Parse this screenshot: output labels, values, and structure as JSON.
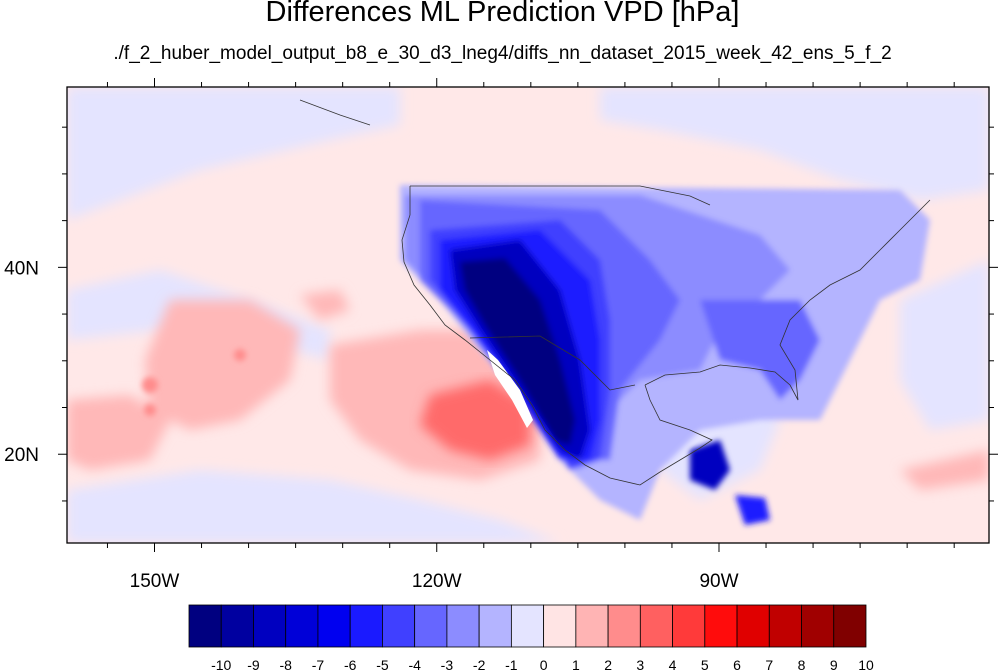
{
  "title": "Differences ML Prediction VPD [hPa]",
  "subtitle": "./f_2_huber_model_output_b8_e_30_d3_lneg4/diffs_nn_dataset_2015_week_42_ens_5_f_2",
  "map": {
    "lon_range": [
      -159.3,
      -61.3
    ],
    "lat_range": [
      10.5,
      59.3
    ],
    "x_ticks": [
      {
        "value": -150,
        "label": "150W"
      },
      {
        "value": -120,
        "label": "120W"
      },
      {
        "value": -90,
        "label": "90W"
      }
    ],
    "y_ticks": [
      {
        "value": 40,
        "label": "40N"
      },
      {
        "value": 20,
        "label": "20N"
      }
    ]
  },
  "colorbar": {
    "levels": [
      "-10",
      "-9",
      "-8",
      "-7",
      "-6",
      "-5",
      "-4",
      "-3",
      "-2",
      "-1",
      "0",
      "1",
      "2",
      "3",
      "4",
      "5",
      "6",
      "7",
      "8",
      "9",
      "10"
    ],
    "colors": [
      "#000080",
      "#0000a0",
      "#0000c0",
      "#0000d8",
      "#0000f0",
      "#1a1aff",
      "#4040ff",
      "#6666ff",
      "#8c8cff",
      "#b4b4ff",
      "#e4e4ff",
      "#ffe4e4",
      "#ffb4b4",
      "#ff8c8c",
      "#ff6060",
      "#ff3a3a",
      "#ff0c0c",
      "#e00000",
      "#c00000",
      "#a00000",
      "#800000"
    ]
  }
}
